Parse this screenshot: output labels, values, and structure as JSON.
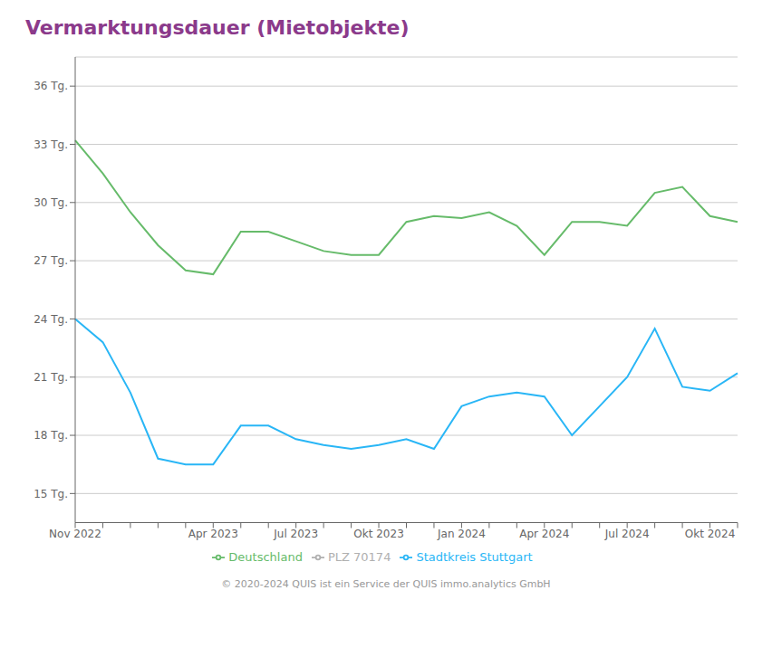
{
  "chart_data": {
    "type": "line",
    "title": "Vermarktungsdauer (Mietobjekte)",
    "categories": [
      "Nov 2022",
      null,
      null,
      null,
      null,
      "Apr 2023",
      null,
      null,
      "Jul 2023",
      null,
      null,
      "Okt 2023",
      null,
      null,
      "Jan 2024",
      null,
      null,
      "Apr 2024",
      null,
      null,
      "Jul 2024",
      null,
      null,
      "Okt 2024",
      null
    ],
    "series": [
      {
        "name": "PLZ 70174",
        "color": "#b0b0b0",
        "values": [
          null,
          null,
          null,
          null,
          null,
          null,
          null,
          null,
          null,
          null,
          null,
          null,
          null,
          null,
          null,
          null,
          null,
          null,
          null,
          null,
          null,
          null,
          null,
          null,
          null
        ]
      },
      {
        "name": "Stadtkreis Stuttgart",
        "color": "#29b6f6",
        "values": [
          24.0,
          22.8,
          20.2,
          16.8,
          16.5,
          16.5,
          18.5,
          18.5,
          17.8,
          17.5,
          17.3,
          17.5,
          17.8,
          17.3,
          19.5,
          20.0,
          20.2,
          20.0,
          18.0,
          19.5,
          21.0,
          23.5,
          20.5,
          20.3,
          21.2
        ]
      },
      {
        "name": "Deutschland",
        "color": "#66bb6a",
        "values": [
          33.2,
          31.5,
          29.5,
          27.8,
          26.5,
          26.3,
          28.5,
          28.5,
          28.0,
          27.5,
          27.3,
          27.3,
          29.0,
          29.3,
          29.2,
          29.5,
          28.8,
          27.3,
          29.0,
          29.0,
          28.8,
          30.5,
          30.8,
          29.3,
          29.0
        ]
      }
    ],
    "ylim": [
      13.5,
      37.5
    ],
    "yticks": [
      {
        "value": 15,
        "label": "15 Tg."
      },
      {
        "value": 18,
        "label": "18 Tg."
      },
      {
        "value": 21,
        "label": "21 Tg."
      },
      {
        "value": 24,
        "label": "24 Tg."
      },
      {
        "value": 27,
        "label": "27 Tg."
      },
      {
        "value": 30,
        "label": "30 Tg."
      },
      {
        "value": 33,
        "label": "33 Tg."
      },
      {
        "value": 36,
        "label": "36 Tg."
      }
    ],
    "grid": true,
    "legend": "bottom",
    "annotations": [
      "© 2020-2024 QUIS ist ein Service der QUIS immo.analytics GmbH"
    ]
  }
}
